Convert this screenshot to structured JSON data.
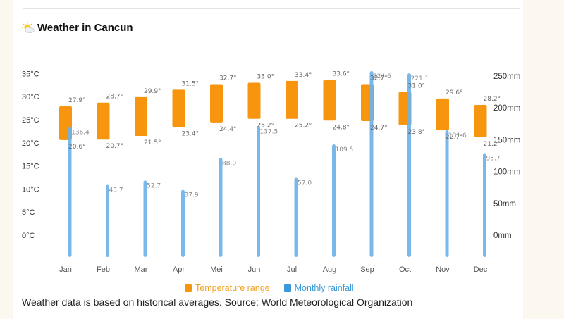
{
  "header": {
    "title": "Weather in Cancun",
    "icon": "sun-behind-cloud-icon"
  },
  "legend": {
    "temperature_label": "Temperature range",
    "rainfall_label": "Monthly rainfall"
  },
  "footer": {
    "note": "Weather data is based on historical averages. Source: World Meteorological Organization"
  },
  "colors": {
    "temperature": "#f7950f",
    "rainfall": "#6cb2e8",
    "temperature_legend_text": "#f0a020",
    "rainfall_legend_text": "#3a9ad9",
    "axis_text": "#333333",
    "label_text": "#666666",
    "background": "#fdf8ef"
  },
  "chart_data": {
    "type": "bar",
    "title": "Weather in Cancun",
    "categories": [
      "Jan",
      "Feb",
      "Mar",
      "Apr",
      "Mei",
      "Jun",
      "Jul",
      "Aug",
      "Sep",
      "Oct",
      "Nov",
      "Dec"
    ],
    "series": [
      {
        "name": "Temperature range",
        "kind": "range",
        "axis": "left",
        "unit": "°C",
        "max": [
          27.9,
          28.7,
          29.9,
          31.5,
          32.7,
          33.0,
          33.4,
          33.6,
          32.7,
          31.0,
          29.6,
          28.2
        ],
        "min": [
          20.6,
          20.7,
          21.5,
          23.4,
          24.4,
          25.2,
          25.2,
          24.8,
          24.7,
          23.8,
          22.7,
          21.2
        ],
        "max_labels": [
          "27.9°",
          "28.7°",
          "29.9°",
          "31.5°",
          "32.7°",
          "33.0°",
          "33.4°",
          "33.6°",
          "32.7°",
          "31.0°",
          "29.6°",
          "28.2°"
        ],
        "min_labels": [
          "20.6°",
          "20.7°",
          "21.5°",
          "23.4°",
          "24.4°",
          "25.2°",
          "25.2°",
          "24.8°",
          "24.7°",
          "23.8°",
          "22.7°",
          "21.2°"
        ]
      },
      {
        "name": "Monthly rainfall",
        "kind": "bar",
        "axis": "right",
        "unit": "mm",
        "values": [
          136.4,
          45.7,
          52.7,
          37.9,
          88.0,
          137.5,
          57.0,
          109.5,
          224.6,
          221.1,
          131.6,
          95.7
        ],
        "labels": [
          "136.4",
          "45.7",
          "52.7",
          "37.9",
          "88.0",
          "137.5",
          "57.0",
          "109.5",
          "224.6",
          "221.1",
          "131.6",
          "95.7"
        ]
      }
    ],
    "left_axis": {
      "ticks": [
        0,
        5,
        10,
        15,
        20,
        25,
        30,
        35
      ],
      "tick_labels": [
        "0°C",
        "5°C",
        "10°C",
        "15°C",
        "20°C",
        "25°C",
        "30°C",
        "35°C"
      ],
      "ylim": [
        0,
        35
      ]
    },
    "right_axis": {
      "ticks": [
        0,
        50,
        100,
        150,
        200,
        250
      ],
      "tick_labels": [
        "0mm",
        "50mm",
        "100mm",
        "150mm",
        "200mm",
        "250mm"
      ],
      "ylim": [
        0,
        250
      ]
    },
    "xlabel": "",
    "grid": false,
    "legend_position": "bottom-center"
  }
}
